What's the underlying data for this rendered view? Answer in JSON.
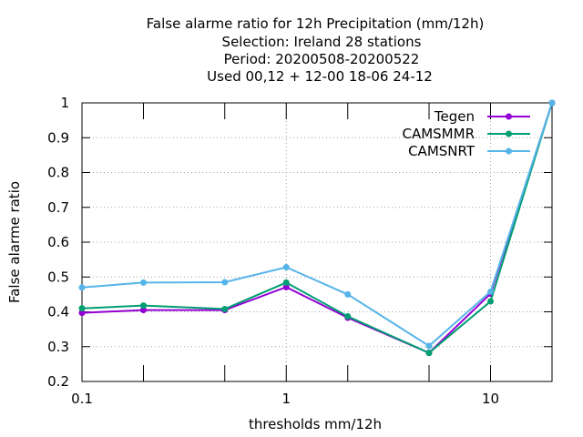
{
  "chart_data": {
    "type": "line",
    "title_lines": [
      "False alarme ratio  for 12h Precipitation (mm/12h)",
      "Selection: Ireland      28 stations",
      "Period: 20200508-20200522",
      "Used  00,12  + 12-00 18-06 24-12"
    ],
    "xlabel": "thresholds mm/12h",
    "ylabel": "False alarme ratio",
    "x_scale": "log",
    "xlim": [
      0.1,
      20
    ],
    "ylim": [
      0.2,
      1.0
    ],
    "x_ticks": [
      0.1,
      1,
      10
    ],
    "x_tick_labels": [
      "0.1",
      "1",
      "10"
    ],
    "x_minor_ticks": [
      0.2,
      0.5,
      2,
      5,
      20
    ],
    "y_ticks": [
      0.2,
      0.3,
      0.4,
      0.5,
      0.6,
      0.7,
      0.8,
      0.9,
      1.0
    ],
    "y_tick_labels": [
      "0.2",
      "0.3",
      "0.4",
      "0.5",
      "0.6",
      "0.7",
      "0.8",
      "0.9",
      "1"
    ],
    "grid": true,
    "legend_position": "top-right",
    "x": [
      0.1,
      0.2,
      0.5,
      1,
      2,
      5,
      10,
      20
    ],
    "series": [
      {
        "name": "Tegen",
        "color": "#9400d3",
        "values": [
          0.397,
          0.405,
          0.405,
          0.471,
          0.383,
          0.282,
          0.452,
          1.0
        ]
      },
      {
        "name": "CAMSMMR",
        "color": "#009e73",
        "values": [
          0.41,
          0.418,
          0.408,
          0.484,
          0.387,
          0.282,
          0.43,
          1.0
        ]
      },
      {
        "name": "CAMSNRT",
        "color": "#56b4e9",
        "values": [
          0.47,
          0.484,
          0.485,
          0.528,
          0.45,
          0.302,
          0.458,
          1.0
        ]
      }
    ]
  }
}
